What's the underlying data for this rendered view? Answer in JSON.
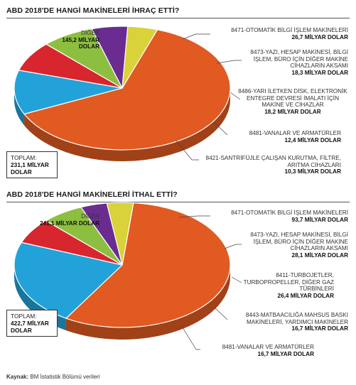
{
  "source": {
    "label": "Kaynak:",
    "text": "BM İstatistik Bölümü verileri"
  },
  "chart_data": [
    {
      "type": "pie",
      "title": "ABD 2018'DE HANGİ MAKİNELERİ İHRAÇ ETTİ?",
      "total": {
        "label": "TOPLAM:",
        "value": "231,1 MİLYAR DOLAR"
      },
      "slices": [
        {
          "name": "DİĞER",
          "value": 145.2,
          "value_label": "145,2 MİLYAR DOLAR",
          "color": "#e05a22"
        },
        {
          "name": "8471-OTOMATİK BİLGİ İŞLEM MAKİNELERİ",
          "value": 26.7,
          "value_label": "26,7 MİLYAR DOLAR",
          "color": "#23a2d9"
        },
        {
          "name": "8473-YAZI, HESAP MAKİNESİ, BİLGİ İŞLEM, BÜRO İÇİN DİĞER MAKİNE CİHAZLARIN AKSAMI",
          "value": 18.3,
          "value_label": "18,3 MİLYAR DOLAR",
          "color": "#d7262e"
        },
        {
          "name": "8486-YARI İLETKEN DİSK, ELEKTRONİK ENTEGRE DEVRESİ İMALATI İÇİN MAKİNE VE CİHAZLAR",
          "value": 18.2,
          "value_label": "18,2 MİLYAR DOLAR",
          "color": "#8cbf3f"
        },
        {
          "name": "8481-VANALAR VE ARMATÜRLER",
          "value": 12.4,
          "value_label": "12,4 MİLYAR DOLAR",
          "color": "#6a2c91"
        },
        {
          "name": "8421-SANTRİFÜJLE ÇALIŞAN KURUTMA, FİLTRE, ARITMA CİHAZLARI",
          "value": 10.3,
          "value_label": "10,3 MİLYAR DOLAR",
          "color": "#d9d23a"
        }
      ]
    },
    {
      "type": "pie",
      "title": "ABD 2018'DE HANGİ MAKİNELERİ İTHAL ETTİ?",
      "total": {
        "label": "TOPLAM:",
        "value": "422,7 MİLYAR DOLAR"
      },
      "slices": [
        {
          "name": "DİĞER",
          "value": 241.1,
          "value_label": "241,1 MİLYAR DOLAR",
          "color": "#e05a22"
        },
        {
          "name": "8471-OTOMATİK BİLGİ İŞLEM MAKİNELERİ",
          "value": 93.7,
          "value_label": "93,7 MİLYAR DOLAR",
          "color": "#23a2d9"
        },
        {
          "name": "8473-YAZI, HESAP MAKİNESİ, BİLGİ İŞLEM, BÜRO İÇİN DİĞER MAKİNE CİHAZLARIN AKSAMI",
          "value": 28.1,
          "value_label": "28,1 MİLYAR DOLAR",
          "color": "#d7262e"
        },
        {
          "name": "8411-TURBOJETLER, TURBOPROPELLER, DİĞER GAZ TÜRBİNLERİ",
          "value": 26.4,
          "value_label": "26,4 MİLYAR DOLAR",
          "color": "#8cbf3f"
        },
        {
          "name": "8443-MATBAACILIĞA MAHSUS BASKI MAKİNELERİ, YARDIMCI MAKİNELER",
          "value": 16.7,
          "value_label": "16,7 MİLYAR DOLAR",
          "color": "#6a2c91"
        },
        {
          "name": "8481-VANALAR VE ARMATÜRLER",
          "value": 16.7,
          "value_label": "16,7 MİLYAR DOLAR",
          "color": "#d9d23a"
        }
      ]
    }
  ]
}
